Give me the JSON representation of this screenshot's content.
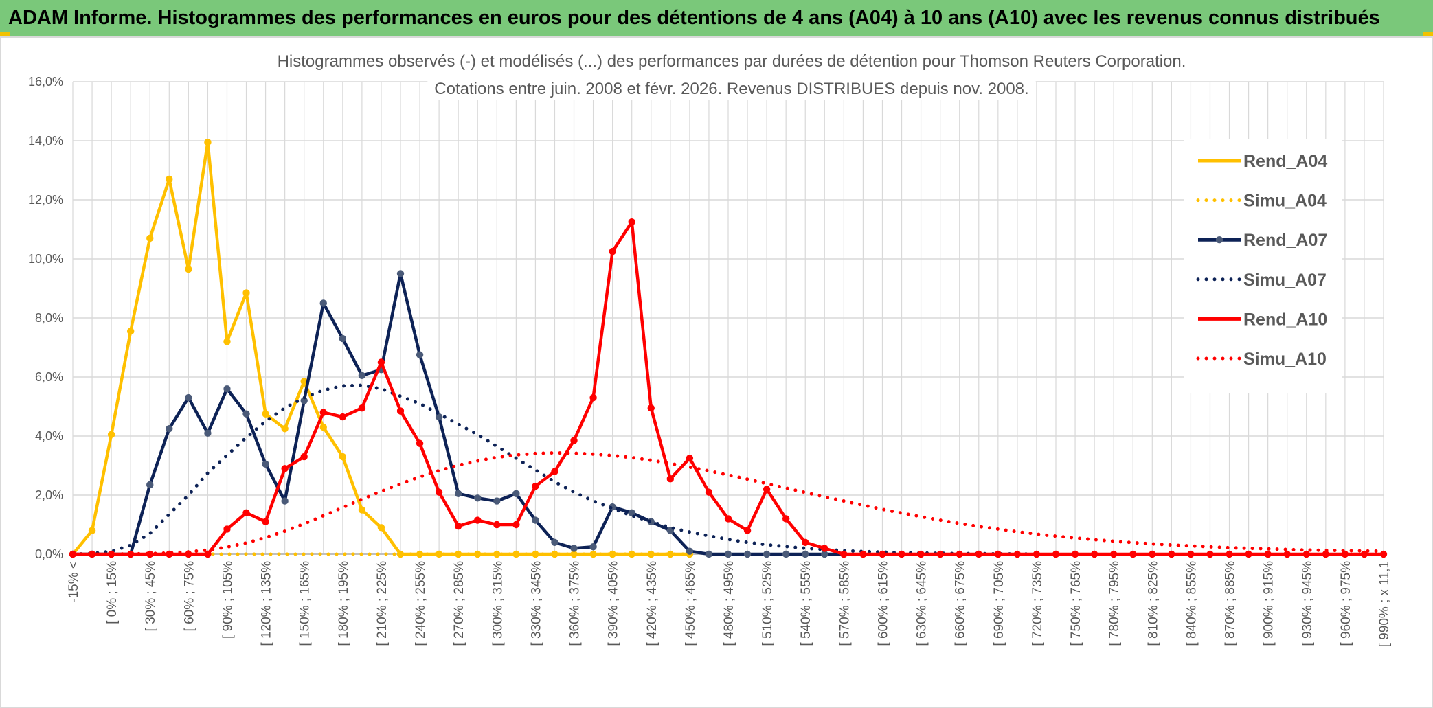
{
  "banner": {
    "title": "ADAM Informe. Histogrammes des performances en euros pour des détentions de 4 ans (A04) à 10 ans (A10) avec les revenus connus distribués"
  },
  "colors": {
    "banner_bg": "#7ac87a",
    "A04": "#ffc000",
    "A07": "#0d2256",
    "A10": "#ff0000",
    "grid": "#d9d9d9",
    "text": "#595959"
  },
  "chart_data": {
    "type": "line",
    "title_lines": [
      "Histogrammes observés (-) et modélisés (...) des performances par durées de détention pour Thomson Reuters Corporation.",
      "Cotations entre juin. 2008 et févr. 2026. Revenus DISTRIBUES depuis nov. 2008."
    ],
    "ylim": [
      0,
      16
    ],
    "y_ticks": [
      "0,0%",
      "2,0%",
      "4,0%",
      "6,0%",
      "8,0%",
      "10,0%",
      "12,0%",
      "14,0%",
      "16,0%"
    ],
    "x_tick_labels": [
      "-15% <",
      "[ 0% ; 15%",
      "[ 30% ; 45%",
      "[ 60% ; 75%",
      "[ 90% ; 105%",
      "[ 120% ; 135%",
      "[ 150% ; 165%",
      "[ 180% ; 195%",
      "[ 210% ; 225%",
      "[ 240% ; 255%",
      "[ 270% ; 285%",
      "[ 300% ; 315%",
      "[ 330% ; 345%",
      "[ 360% ; 375%",
      "[ 390% ; 405%",
      "[ 420% ; 435%",
      "[ 450% ; 465%",
      "[ 480% ; 495%",
      "[ 510% ; 525%",
      "[ 540% ; 555%",
      "[ 570% ; 585%",
      "[ 600% ; 615%",
      "[ 630% ; 645%",
      "[ 660% ; 675%",
      "[ 690% ; 705%",
      "[ 720% ; 735%",
      "[ 750% ; 765%",
      "[ 780% ; 795%",
      "[ 810% ; 825%",
      "[ 840% ; 855%",
      "[ 870% ; 885%",
      "[ 900% ; 915%",
      "[ 930% ; 945%",
      "[ 960% ; 975%",
      "[ 990% ; x 11,1"
    ],
    "n_categories": 69,
    "grid": true,
    "legend_position": "right",
    "series": [
      {
        "name": "Rend_A04",
        "style": "solid",
        "color": "#ffc000",
        "values": [
          0.0,
          0.8,
          4.05,
          7.55,
          10.7,
          12.7,
          9.65,
          13.95,
          7.2,
          8.85,
          4.75,
          4.25,
          5.85,
          4.3,
          3.3,
          1.5,
          0.9,
          0,
          0,
          0,
          0,
          0,
          0,
          0,
          0,
          0,
          0,
          0,
          0,
          0,
          0,
          0,
          0
        ]
      },
      {
        "name": "Simu_A04",
        "style": "dotted",
        "color": "#ffc000",
        "values": [
          0,
          0,
          0,
          0,
          0,
          0,
          0,
          0,
          0,
          0,
          0,
          0,
          0,
          0,
          0,
          0,
          0,
          0,
          0,
          0,
          0,
          0,
          0,
          0,
          0,
          0,
          0,
          0,
          0,
          0,
          0,
          0,
          0
        ]
      },
      {
        "name": "Rend_A07",
        "style": "solid",
        "color": "#0d2256",
        "values": [
          0,
          0,
          0,
          0,
          2.35,
          4.25,
          5.3,
          4.1,
          5.6,
          4.75,
          3.05,
          1.8,
          5.2,
          8.5,
          7.3,
          6.05,
          6.25,
          9.5,
          6.75,
          4.65,
          2.05,
          1.9,
          1.8,
          2.05,
          1.15,
          0.4,
          0.2,
          0.25,
          1.6,
          1.4,
          1.1,
          0.8,
          0.1,
          0,
          0,
          0,
          0,
          0,
          0,
          0,
          0
        ]
      },
      {
        "name": "Simu_A07",
        "style": "dotted",
        "color": "#0d2256",
        "values": [
          0,
          0.02,
          0.1,
          0.3,
          0.7,
          1.35,
          2.0,
          2.75,
          3.35,
          3.95,
          4.5,
          4.95,
          5.3,
          5.55,
          5.7,
          5.72,
          5.6,
          5.35,
          5.1,
          4.75,
          4.4,
          4.05,
          3.65,
          3.25,
          2.85,
          2.45,
          2.1,
          1.8,
          1.55,
          1.3,
          1.1,
          0.9,
          0.75,
          0.62,
          0.5,
          0.4,
          0.32,
          0.26,
          0.2,
          0.16,
          0.12,
          0.09,
          0.07,
          0.05,
          0.04,
          0.03,
          0.02,
          0.02,
          0.01,
          0.01,
          0
        ]
      },
      {
        "name": "Rend_A10",
        "style": "solid",
        "color": "#ff0000",
        "values": [
          0,
          0,
          0,
          0,
          0,
          0,
          0,
          0,
          0.85,
          1.4,
          1.1,
          2.9,
          3.3,
          4.8,
          4.65,
          4.95,
          6.5,
          4.85,
          3.75,
          2.1,
          0.95,
          1.15,
          1.0,
          1.0,
          2.3,
          2.8,
          3.85,
          5.3,
          10.25,
          11.25,
          4.95,
          2.55,
          3.25,
          2.1,
          1.2,
          0.8,
          2.2,
          1.2,
          0.4,
          0.2,
          0,
          0,
          0,
          0,
          0,
          0,
          0,
          0,
          0,
          0,
          0,
          0,
          0,
          0,
          0,
          0,
          0,
          0,
          0,
          0,
          0,
          0,
          0,
          0,
          0,
          0,
          0,
          0,
          0
        ]
      },
      {
        "name": "Simu_A10",
        "style": "dotted",
        "color": "#ff0000",
        "values": [
          0,
          0,
          0,
          0.01,
          0.02,
          0.04,
          0.08,
          0.14,
          0.24,
          0.38,
          0.56,
          0.78,
          1.03,
          1.3,
          1.58,
          1.86,
          2.13,
          2.38,
          2.62,
          2.83,
          3.01,
          3.16,
          3.28,
          3.36,
          3.41,
          3.43,
          3.42,
          3.39,
          3.34,
          3.27,
          3.18,
          3.07,
          2.95,
          2.82,
          2.68,
          2.54,
          2.39,
          2.24,
          2.09,
          1.94,
          1.8,
          1.66,
          1.52,
          1.39,
          1.27,
          1.15,
          1.04,
          0.94,
          0.85,
          0.76,
          0.68,
          0.61,
          0.55,
          0.49,
          0.44,
          0.39,
          0.35,
          0.31,
          0.28,
          0.25,
          0.22,
          0.2,
          0.18,
          0.16,
          0.14,
          0.13,
          0.12,
          0.11,
          0.1
        ]
      }
    ]
  }
}
